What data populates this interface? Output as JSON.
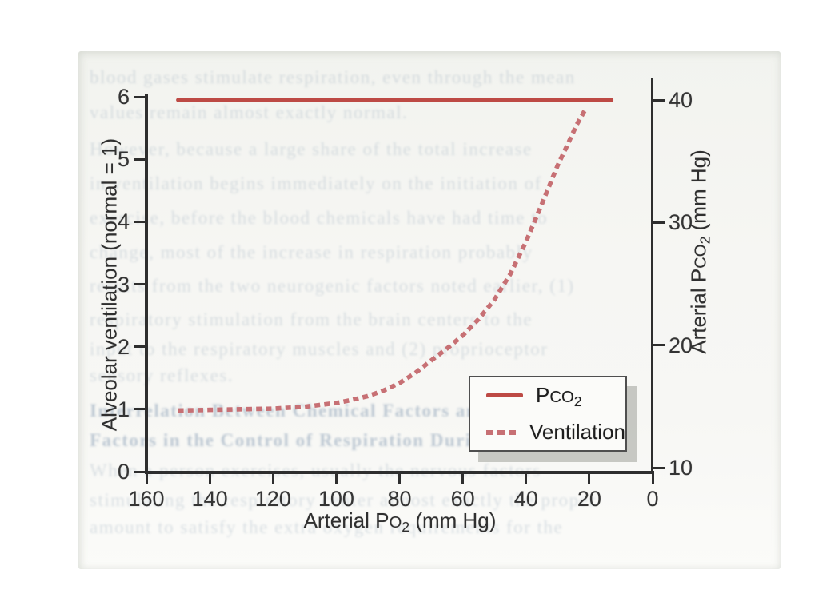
{
  "colors": {
    "pco2_line": "#bd4a45",
    "ventilation_line": "#c77074",
    "axis": "#2e2e2e",
    "scan_background": "#f4f5f1",
    "bleed_text": "#8ea2b5",
    "legend_shadow": "#9ea099"
  },
  "chart_data": {
    "type": "line",
    "title": "",
    "xlabel": "Arterial PO2 (mm Hg)",
    "x_ticks": [
      160,
      140,
      120,
      100,
      80,
      60,
      40,
      20,
      0
    ],
    "x_range": [
      160,
      0
    ],
    "x_reversed": true,
    "ylabel_left": "Alveolar ventilation (normal = 1)",
    "y_left_ticks": [
      0,
      1,
      2,
      3,
      4,
      5,
      6
    ],
    "y_left_range": [
      0,
      6
    ],
    "ylabel_right": "Arterial PCO2 (mm Hg)",
    "y_right_ticks": [
      10,
      20,
      30,
      40
    ],
    "y_right_range": [
      10,
      40
    ],
    "grid": false,
    "legend_position": "lower-right",
    "series": [
      {
        "name": "PCO2",
        "axis": "right",
        "style": "solid",
        "color": "#bd4a45",
        "points": [
          [
            150,
            40
          ],
          [
            13,
            40
          ]
        ]
      },
      {
        "name": "Ventilation",
        "axis": "left",
        "style": "dashed",
        "color": "#c77074",
        "points": [
          [
            150,
            0.98
          ],
          [
            140,
            0.99
          ],
          [
            130,
            1.0
          ],
          [
            120,
            1.01
          ],
          [
            110,
            1.04
          ],
          [
            100,
            1.1
          ],
          [
            95,
            1.15
          ],
          [
            90,
            1.21
          ],
          [
            85,
            1.3
          ],
          [
            80,
            1.42
          ],
          [
            75,
            1.58
          ],
          [
            70,
            1.78
          ],
          [
            65,
            1.97
          ],
          [
            60,
            2.18
          ],
          [
            55,
            2.44
          ],
          [
            50,
            2.75
          ],
          [
            45,
            3.16
          ],
          [
            40,
            3.68
          ],
          [
            35,
            4.28
          ],
          [
            30,
            4.9
          ],
          [
            27,
            5.22
          ],
          [
            24,
            5.55
          ],
          [
            21,
            5.82
          ]
        ]
      }
    ]
  },
  "legend": {
    "entries": [
      {
        "label": "PCO2",
        "swatch": "solid-red-line"
      },
      {
        "label": "Ventilation",
        "swatch": "dashed-red-line"
      }
    ]
  },
  "bleed_text_lines": [
    {
      "y": 20,
      "strong": false,
      "text": "blood gases stimulate respiration, even through the mean"
    },
    {
      "y": 64,
      "strong": false,
      "text": "values remain almost exactly normal."
    },
    {
      "y": 110,
      "strong": false,
      "text": "However, because a large share of the total increase"
    },
    {
      "y": 153,
      "strong": false,
      "text": "in ventilation begins immediately on the initiation of"
    },
    {
      "y": 196,
      "strong": false,
      "text": "exercise, before the blood chemicals have had time to"
    },
    {
      "y": 239,
      "strong": false,
      "text": "change, most of the increase in respiration probably"
    },
    {
      "y": 281,
      "strong": false,
      "text": "results from the two neurogenic factors noted earlier, (1)"
    },
    {
      "y": 323,
      "strong": false,
      "text": "respiratory stimulation from the brain centers to the"
    },
    {
      "y": 360,
      "strong": false,
      "text": "input to the respiratory muscles and (2) proprioceptor"
    },
    {
      "y": 393,
      "strong": false,
      "text": "sensory reflexes."
    },
    {
      "y": 437,
      "strong": true,
      "text": "Interrelation Between Chemical Factors and Nervous"
    },
    {
      "y": 474,
      "strong": true,
      "text": "Factors in the Control of Respiration During Exercise."
    },
    {
      "y": 512,
      "strong": false,
      "text": "When a person exercises, usually the nervous factors"
    },
    {
      "y": 549,
      "strong": false,
      "text": "stimulating the respiratory center almost exactly the proper"
    },
    {
      "y": 583,
      "strong": false,
      "text": "amount to satisfy the extra oxygen requirements for the"
    }
  ],
  "geometry_note": "plot area: x 183-816 px maps PO2 160-0; y 590-121 px maps ventilation 0-6; y 585-125 px maps PCO2 10-40"
}
